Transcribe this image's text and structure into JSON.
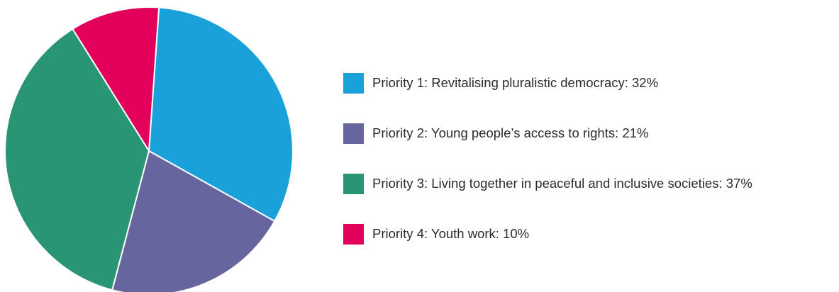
{
  "chart_data": {
    "type": "pie",
    "title": "",
    "slices": [
      {
        "label": "Priority 1: Revitalising pluralistic democracy: 32%",
        "value": 32,
        "color": "#1ba1d9"
      },
      {
        "label": "Priority 2: Young people’s access to rights: 21%",
        "value": 21,
        "color": "#67659e"
      },
      {
        "label": "Priority 3: Living together in peaceful and inclusive societies: 37%",
        "value": 37,
        "color": "#2a9574"
      },
      {
        "label": "Priority 4: Youth work: 10%",
        "value": 10,
        "color": "#e3005a"
      }
    ],
    "legend_position": "right"
  },
  "legend": {
    "items": [
      {
        "label": "Priority 1: Revitalising pluralistic democracy: 32%",
        "color": "#1ba1d9"
      },
      {
        "label": "Priority 2: Young people’s access to rights: 21%",
        "color": "#67659e"
      },
      {
        "label": "Priority 3: Living together in peaceful and inclusive societies: 37%",
        "color": "#2a9574"
      },
      {
        "label": "Priority 4: Youth work: 10%",
        "color": "#e3005a"
      }
    ]
  }
}
